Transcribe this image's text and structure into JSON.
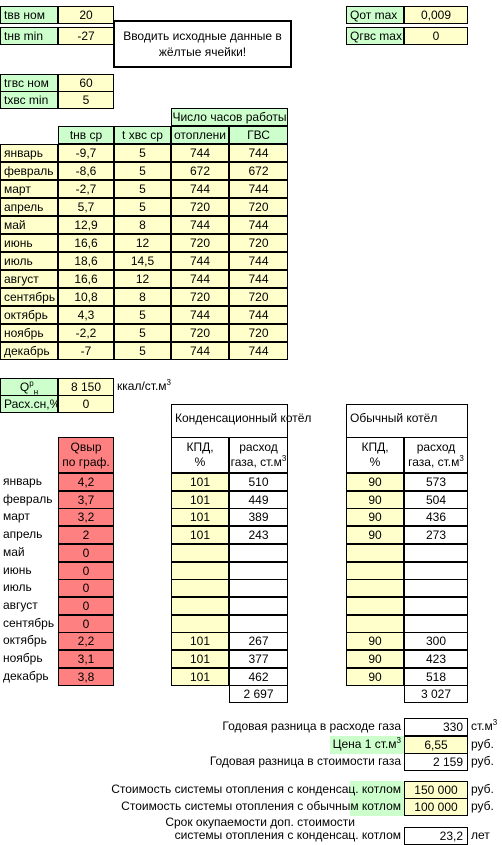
{
  "top_inputs": [
    {
      "label": "tвв ном",
      "value": "20"
    },
    {
      "label": "tнв min",
      "value": "-27"
    }
  ],
  "note_text": "Вводить исходные данные в жёлтые ячейки!",
  "qmax": [
    {
      "label": "Qот max",
      "value": "0,009"
    },
    {
      "label": "Qгвс max",
      "value": "0"
    }
  ],
  "gvs_inputs": [
    {
      "label": "tгвс ном",
      "value": "60"
    },
    {
      "label": "tхвс min",
      "value": "5"
    }
  ],
  "hours_header": "Число часов работы",
  "month_table": {
    "headers": [
      "tнв ср",
      "t хвс ср",
      "отоплени",
      "ГВС"
    ],
    "rows": [
      {
        "month": "январь",
        "tnv": "-9,7",
        "txvs": "5",
        "heat": "744",
        "gvs": "744"
      },
      {
        "month": "февраль",
        "tnv": "-8,6",
        "txvs": "5",
        "heat": "672",
        "gvs": "672"
      },
      {
        "month": "март",
        "tnv": "-2,7",
        "txvs": "5",
        "heat": "744",
        "gvs": "744"
      },
      {
        "month": "апрель",
        "tnv": "5,7",
        "txvs": "5",
        "heat": "720",
        "gvs": "720"
      },
      {
        "month": "май",
        "tnv": "12,9",
        "txvs": "8",
        "heat": "744",
        "gvs": "744"
      },
      {
        "month": "июнь",
        "tnv": "16,6",
        "txvs": "12",
        "heat": "720",
        "gvs": "720"
      },
      {
        "month": "июль",
        "tnv": "18,6",
        "txvs": "14,5",
        "heat": "744",
        "gvs": "744"
      },
      {
        "month": "август",
        "tnv": "16,6",
        "txvs": "12",
        "heat": "744",
        "gvs": "744"
      },
      {
        "month": "сентябрь",
        "tnv": "10,8",
        "txvs": "8",
        "heat": "720",
        "gvs": "720"
      },
      {
        "month": "октябрь",
        "tnv": "4,3",
        "txvs": "5",
        "heat": "744",
        "gvs": "744"
      },
      {
        "month": "ноябрь",
        "tnv": "-2,2",
        "txvs": "5",
        "heat": "720",
        "gvs": "720"
      },
      {
        "month": "декабрь",
        "tnv": "-7",
        "txvs": "5",
        "heat": "744",
        "gvs": "744"
      }
    ]
  },
  "qn": {
    "label_main": "Q",
    "label_sup": "р",
    "label_sub": "н",
    "value": "8 150",
    "unit": "ккал/ст.м",
    "unit_sup": "3"
  },
  "rash": {
    "label": "Расх.сн,%",
    "value": "0"
  },
  "cond_title": "Конденсационный котёл",
  "usual_title": "Обычный котёл",
  "qvyr_header": [
    "Qвыр",
    "по граф."
  ],
  "kpd_header": [
    "КПД,",
    "%"
  ],
  "gas_header": [
    "расход",
    "газа, ст.м"
  ],
  "gas_header_sup": "3",
  "boiler_rows": [
    {
      "month": "январь",
      "q": "4,2",
      "ck": "101",
      "cg": "510",
      "uk": "90",
      "ug": "573"
    },
    {
      "month": "февраль",
      "q": "3,7",
      "ck": "101",
      "cg": "449",
      "uk": "90",
      "ug": "504"
    },
    {
      "month": "март",
      "q": "3,2",
      "ck": "101",
      "cg": "389",
      "uk": "90",
      "ug": "436"
    },
    {
      "month": "апрель",
      "q": "2",
      "ck": "101",
      "cg": "243",
      "uk": "90",
      "ug": "273"
    },
    {
      "month": "май",
      "q": "0",
      "ck": "",
      "cg": "",
      "uk": "",
      "ug": ""
    },
    {
      "month": "июнь",
      "q": "0",
      "ck": "",
      "cg": "",
      "uk": "",
      "ug": ""
    },
    {
      "month": "июль",
      "q": "0",
      "ck": "",
      "cg": "",
      "uk": "",
      "ug": ""
    },
    {
      "month": "август",
      "q": "0",
      "ck": "",
      "cg": "",
      "uk": "",
      "ug": ""
    },
    {
      "month": "сентябрь",
      "q": "0",
      "ck": "",
      "cg": "",
      "uk": "",
      "ug": ""
    },
    {
      "month": "октябрь",
      "q": "2,2",
      "ck": "101",
      "cg": "267",
      "uk": "90",
      "ug": "300"
    },
    {
      "month": "ноябрь",
      "q": "3,1",
      "ck": "101",
      "cg": "377",
      "uk": "90",
      "ug": "423"
    },
    {
      "month": "декабрь",
      "q": "3,8",
      "ck": "101",
      "cg": "462",
      "uk": "90",
      "ug": "518"
    }
  ],
  "cond_total": "2 697",
  "usual_total": "3 027",
  "summary": {
    "gas_diff_label": "Годовая разница в расходе газа",
    "gas_diff_value": "330",
    "gas_diff_unit": "ст.м",
    "gas_diff_unit_sup": "3",
    "price_label": "Цена 1 ст.м",
    "price_label_sup": "3",
    "price_value": "6,55",
    "price_unit": "руб.",
    "cost_diff_label": "Годовая разница в стоимости газа",
    "cost_diff_value": "2 159",
    "cost_diff_unit": "руб.",
    "sys_cond_label": "Стоимость системы отопления с конденсац. котлом",
    "sys_cond_value": "150 000",
    "sys_cond_unit": "руб.",
    "sys_usual_label": "Стоимость системы отопления с обычным котлом",
    "sys_usual_value": "100 000",
    "sys_usual_unit": "руб.",
    "payback_label1": "Срок окупаемости доп. стоимости",
    "payback_label2": "системы отопления с конденсац. котлом",
    "payback_value": "23,2",
    "payback_unit": "лет"
  }
}
